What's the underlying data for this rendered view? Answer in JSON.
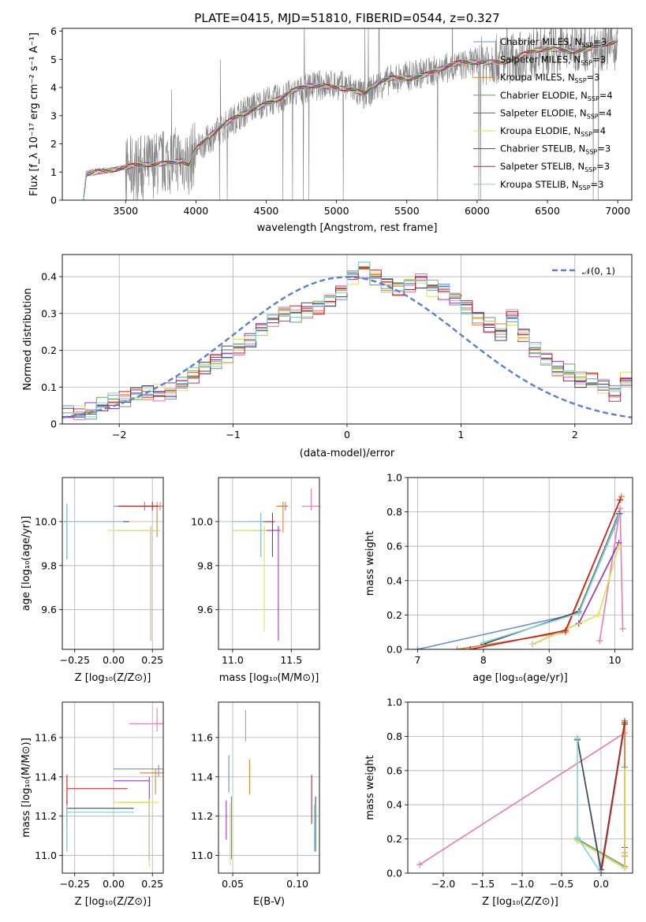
{
  "figure": {
    "title": "PLATE=0415, MJD=51810, FIBERID=0544, z=0.327"
  },
  "colors": {
    "Chabrier MILES": "#6b8fd4",
    "Salpeter MILES": "#e87cb0",
    "Kroupa MILES": "#d9822b",
    "Chabrier ELODIE": "#6a9e6a",
    "Salpeter ELODIE": "#9b37c0",
    "Kroupa ELODIE": "#e3e052",
    "Chabrier STELIB": "#3d4e4e",
    "Salpeter STELIB": "#c81e1e",
    "Kroupa STELIB": "#87cfd8",
    "data": "#808080",
    "normal": "#5b7fd0"
  },
  "chart_data": [
    {
      "id": "spectrum",
      "type": "line",
      "title": "PLATE=0415, MJD=51810, FIBERID=0544, z=0.327",
      "xlabel": "wavelength [Angstrom, rest frame]",
      "ylabel": "Flux [f_λ 10⁻¹⁷ erg cm⁻² s⁻¹ A⁻¹]",
      "xlim": [
        3050,
        7100
      ],
      "ylim": [
        0,
        6.1
      ],
      "xticks": [
        3500,
        4000,
        4500,
        5000,
        5500,
        6000,
        6500,
        7000
      ],
      "yticks": [
        0,
        1,
        2,
        3,
        4,
        5,
        6
      ],
      "legend_loc": "upper right",
      "legend": [
        "Chabrier MILES, N_SSP=3",
        "Salpeter MILES, N_SSP=3",
        "Kroupa MILES, N_SSP=3",
        "Chabrier ELODIE, N_SSP=4",
        "Salpeter ELODIE, N_SSP=4",
        "Kroupa ELODIE, N_SSP=4",
        "Chabrier STELIB, N_SSP=3",
        "Salpeter STELIB, N_SSP=3",
        "Kroupa STELIB, N_SSP=3"
      ],
      "continuum": {
        "x": [
          3200,
          3220,
          3300,
          3400,
          3500,
          3600,
          3700,
          3800,
          3900,
          3950,
          4000,
          4100,
          4200,
          4300,
          4400,
          4500,
          4600,
          4700,
          4800,
          4900,
          5000,
          5100,
          5200,
          5300,
          5400,
          5500,
          5600,
          5700,
          5800,
          5900,
          6000,
          6100,
          6200,
          6300,
          6400,
          6500,
          6600,
          6700,
          6800,
          6900,
          7000
        ],
        "y": [
          0,
          1.0,
          1.1,
          1.1,
          1.1,
          1.15,
          1.25,
          1.4,
          1.5,
          1.3,
          1.8,
          2.2,
          2.6,
          3.0,
          3.3,
          3.5,
          3.6,
          3.8,
          4.0,
          4.1,
          4.1,
          4.0,
          3.7,
          4.1,
          4.3,
          4.4,
          4.5,
          4.6,
          4.7,
          4.8,
          4.9,
          5.0,
          5.0,
          5.1,
          5.2,
          5.3,
          5.35,
          5.4,
          5.45,
          5.5,
          5.5
        ]
      }
    },
    {
      "id": "residuals",
      "type": "line",
      "xlabel": "(data-model)/error",
      "ylabel": "Normed distribution",
      "xlim": [
        -2.5,
        2.5
      ],
      "ylim": [
        0,
        0.46
      ],
      "xticks": [
        -2,
        -1,
        0,
        1,
        2
      ],
      "yticks": [
        0.0,
        0.1,
        0.2,
        0.3,
        0.4
      ],
      "legend": [
        "𝒩(0, 1)"
      ],
      "legend_loc": "upper right",
      "grid": true,
      "bin_edges_start": -2.6,
      "bin_width": 0.1,
      "histogram_base": [
        0.025,
        0.03,
        0.03,
        0.035,
        0.05,
        0.06,
        0.065,
        0.08,
        0.085,
        0.085,
        0.09,
        0.11,
        0.13,
        0.15,
        0.17,
        0.19,
        0.21,
        0.23,
        0.26,
        0.28,
        0.3,
        0.3,
        0.31,
        0.32,
        0.34,
        0.36,
        0.4,
        0.42,
        0.4,
        0.38,
        0.37,
        0.38,
        0.39,
        0.37,
        0.36,
        0.34,
        0.32,
        0.29,
        0.27,
        0.25,
        0.29,
        0.24,
        0.2,
        0.18,
        0.15,
        0.14,
        0.12,
        0.12,
        0.1,
        0.08,
        0.12,
        0.08,
        0.08,
        0.06,
        0.05,
        0.04
      ]
    },
    {
      "id": "age-vs-Z",
      "type": "scatter",
      "xlabel": "Z [log₁₀(Z/Z⊙)]",
      "ylabel": "age  [log₁₀(age/yr)]",
      "xlim": [
        -0.33,
        0.32
      ],
      "ylim": [
        9.42,
        10.2
      ],
      "xticks": [
        -0.25,
        0.0,
        0.25
      ],
      "yticks": [
        9.6,
        9.8,
        10.0
      ],
      "grid": true,
      "series": [
        {
          "name": "Chabrier MILES",
          "x": 0.2,
          "xerr": [
            0.2,
            0.1
          ],
          "y": 10.07,
          "yerr": [
            0.02,
            0.02
          ]
        },
        {
          "name": "Salpeter MILES",
          "x": 0.3,
          "xerr": [
            0.04,
            0.04
          ],
          "y": 10.07,
          "yerr": [
            0.02,
            0.02
          ]
        },
        {
          "name": "Kroupa MILES",
          "x": 0.28,
          "xerr": [
            0.1,
            0.05
          ],
          "y": 10.07,
          "yerr": [
            0.14,
            0.02
          ]
        },
        {
          "name": "Chabrier ELODIE",
          "x": -0.3,
          "xerr": [
            0.02,
            0.0
          ],
          "y": 10.0,
          "yerr": [
            0.17,
            0.08
          ]
        },
        {
          "name": "Salpeter ELODIE",
          "x": 0.24,
          "xerr": [
            0.22,
            0.06
          ],
          "y": 9.96,
          "yerr": [
            0.5,
            0.02
          ]
        },
        {
          "name": "Kroupa ELODIE",
          "x": 0.24,
          "xerr": [
            0.28,
            0.06
          ],
          "y": 9.96,
          "yerr": [
            0.5,
            0.02
          ]
        },
        {
          "name": "Chabrier STELIB",
          "x": -0.3,
          "xerr": [
            0.0,
            0.4
          ],
          "y": 10.0,
          "yerr": [
            0.16,
            0.08
          ]
        },
        {
          "name": "Salpeter STELIB",
          "x": 0.25,
          "xerr": [
            0.22,
            0.04
          ],
          "y": 10.07,
          "yerr": [
            0.02,
            0.02
          ]
        },
        {
          "name": "Kroupa STELIB",
          "x": -0.3,
          "xerr": [
            0.0,
            0.36
          ],
          "y": 10.0,
          "yerr": [
            0.16,
            0.08
          ]
        }
      ]
    },
    {
      "id": "age-vs-mass",
      "type": "scatter",
      "xlabel": "mass [log₁₀(M/M⊙)]",
      "ylabel": "",
      "xlim": [
        10.88,
        11.74
      ],
      "ylim": [
        9.42,
        10.2
      ],
      "xticks": [
        11.0,
        11.5
      ],
      "yticks": [
        9.6,
        9.8,
        10.0
      ],
      "grid": true,
      "series": [
        {
          "name": "Chabrier MILES",
          "x": 11.45,
          "xerr": [
            0.06,
            0.02
          ],
          "y": 10.07,
          "yerr": [
            0.02,
            0.02
          ]
        },
        {
          "name": "Salpeter MILES",
          "x": 11.67,
          "xerr": [
            0.08,
            0.08
          ],
          "y": 10.07,
          "yerr": [
            0.02,
            0.08
          ]
        },
        {
          "name": "Kroupa MILES",
          "x": 11.43,
          "xerr": [
            0.06,
            0.04
          ],
          "y": 10.07,
          "yerr": [
            0.12,
            0.02
          ]
        },
        {
          "name": "Chabrier ELODIE",
          "x": 11.27,
          "xerr": [
            0.27,
            0.02
          ],
          "y": 9.96,
          "yerr": [
            0.02,
            0.02
          ]
        },
        {
          "name": "Salpeter ELODIE",
          "x": 11.39,
          "xerr": [
            0.21,
            0.02
          ],
          "y": 9.96,
          "yerr": [
            0.5,
            0.02
          ]
        },
        {
          "name": "Kroupa ELODIE",
          "x": 11.27,
          "xerr": [
            0.27,
            0.02
          ],
          "y": 9.96,
          "yerr": [
            0.46,
            0.02
          ]
        },
        {
          "name": "Chabrier STELIB",
          "x": 11.24,
          "xerr": [
            0.24,
            0.02
          ],
          "y": 10.0,
          "yerr": [
            0.16,
            0.04
          ]
        },
        {
          "name": "Salpeter STELIB",
          "x": 11.34,
          "xerr": [
            0.2,
            0.02
          ],
          "y": 10.0,
          "yerr": [
            0.16,
            0.04
          ]
        },
        {
          "name": "Kroupa STELIB",
          "x": 11.24,
          "xerr": [
            0.24,
            0.02
          ],
          "y": 10.0,
          "yerr": [
            0.16,
            0.04
          ]
        }
      ]
    },
    {
      "id": "weight-vs-age",
      "type": "line",
      "xlabel": "age  [log₁₀(age/yr)]",
      "ylabel": "mass weight",
      "xlim": [
        6.85,
        10.27
      ],
      "ylim": [
        0,
        1.0
      ],
      "xticks": [
        7,
        8,
        9,
        10
      ],
      "yticks": [
        0.0,
        0.2,
        0.4,
        0.6,
        0.8,
        1.0
      ],
      "grid": true,
      "series": [
        {
          "name": "Chabrier MILES",
          "x": [
            7.0,
            9.45,
            10.08
          ],
          "y": [
            0.0,
            0.21,
            0.79
          ]
        },
        {
          "name": "Salpeter MILES",
          "x": [
            9.77,
            10.08,
            10.12
          ],
          "y": [
            0.05,
            0.82,
            0.12
          ]
        },
        {
          "name": "Kroupa MILES",
          "x": [
            7.6,
            9.25,
            10.1
          ],
          "y": [
            0.0,
            0.1,
            0.89
          ]
        },
        {
          "name": "Chabrier ELODIE",
          "x": [
            8.75,
            9.45,
            10.06
          ],
          "y": [
            0.03,
            0.15,
            0.62
          ]
        },
        {
          "name": "Salpeter ELODIE",
          "x": [
            8.75,
            9.45,
            10.06
          ],
          "y": [
            0.03,
            0.15,
            0.62
          ]
        },
        {
          "name": "Kroupa ELODIE",
          "x": [
            8.75,
            9.75,
            10.06
          ],
          "y": [
            0.03,
            0.2,
            0.6
          ]
        },
        {
          "name": "Chabrier STELIB",
          "x": [
            8.0,
            9.45,
            10.06
          ],
          "y": [
            0.03,
            0.22,
            0.79
          ]
        },
        {
          "name": "Salpeter STELIB",
          "x": [
            7.8,
            9.25,
            10.08
          ],
          "y": [
            0.0,
            0.11,
            0.87
          ]
        },
        {
          "name": "Kroupa STELIB",
          "x": [
            8.0,
            9.45,
            10.06
          ],
          "y": [
            0.04,
            0.21,
            0.78
          ]
        }
      ]
    },
    {
      "id": "mass-vs-Z",
      "type": "scatter",
      "xlabel": "Z [log₁₀(Z/Z⊙)]",
      "ylabel": "mass [log₁₀(M/M⊙)]",
      "xlim": [
        -0.33,
        0.32
      ],
      "ylim": [
        10.91,
        11.78
      ],
      "xticks": [
        -0.25,
        0.0,
        0.25
      ],
      "yticks": [
        11.0,
        11.2,
        11.4,
        11.6
      ],
      "grid": true,
      "series": [
        {
          "name": "Chabrier MILES",
          "x": 0.29,
          "xerr": [
            0.29,
            0.03
          ],
          "y": 11.44,
          "yerr": [
            0.04,
            0.02
          ]
        },
        {
          "name": "Salpeter MILES",
          "x": 0.28,
          "xerr": [
            0.18,
            0.04
          ],
          "y": 11.67,
          "yerr": [
            0.04,
            0.08
          ]
        },
        {
          "name": "Kroupa MILES",
          "x": 0.27,
          "xerr": [
            0.1,
            0.05
          ],
          "y": 11.42,
          "yerr": [
            0.11,
            0.02
          ]
        },
        {
          "name": "Chabrier ELODIE",
          "x": 0.23,
          "xerr": [
            0.19,
            0.0
          ],
          "y": 11.27,
          "yerr": [
            0.3,
            0.02
          ]
        },
        {
          "name": "Salpeter ELODIE",
          "x": 0.23,
          "xerr": [
            0.23,
            0.0
          ],
          "y": 11.38,
          "yerr": [
            0.4,
            0.02
          ]
        },
        {
          "name": "Kroupa ELODIE",
          "x": 0.23,
          "xerr": [
            0.23,
            0.06
          ],
          "y": 11.27,
          "yerr": [
            0.33,
            0.02
          ]
        },
        {
          "name": "Chabrier STELIB",
          "x": -0.3,
          "xerr": [
            0.0,
            0.43
          ],
          "y": 11.24,
          "yerr": [
            0.22,
            0.04
          ]
        },
        {
          "name": "Salpeter STELIB",
          "x": -0.3,
          "xerr": [
            0.0,
            0.39
          ],
          "y": 11.34,
          "yerr": [
            0.2,
            0.07
          ]
        },
        {
          "name": "Kroupa STELIB",
          "x": -0.3,
          "xerr": [
            0.0,
            0.43
          ],
          "y": 11.22,
          "yerr": [
            0.2,
            0.04
          ]
        }
      ]
    },
    {
      "id": "mass-vs-ebv",
      "type": "scatter",
      "xlabel": "E(B-V)",
      "ylabel": "",
      "xlim": [
        0.039,
        0.117
      ],
      "ylim": [
        10.91,
        11.78
      ],
      "xticks": [
        0.05,
        0.1
      ],
      "yticks": [
        11.0,
        11.2,
        11.4,
        11.6
      ],
      "grid": true,
      "series": [
        {
          "name": "Chabrier MILES",
          "x": 0.047,
          "y": 11.42,
          "yerr": [
            0.1,
            0.09
          ]
        },
        {
          "name": "Salpeter MILES",
          "x": 0.06,
          "y": 11.67,
          "yerr": [
            0.09,
            0.07
          ]
        },
        {
          "name": "Kroupa MILES",
          "x": 0.063,
          "y": 11.4,
          "yerr": [
            0.09,
            0.09
          ]
        },
        {
          "name": "Chabrier ELODIE",
          "x": 0.049,
          "y": 11.18,
          "yerr": [
            0.2,
            0.12
          ]
        },
        {
          "name": "Salpeter ELODIE",
          "x": 0.045,
          "y": 11.22,
          "yerr": [
            0.14,
            0.06
          ]
        },
        {
          "name": "Kroupa ELODIE",
          "x": 0.048,
          "y": 11.15,
          "yerr": [
            0.2,
            0.12
          ]
        },
        {
          "name": "Chabrier STELIB",
          "x": 0.114,
          "y": 11.17,
          "yerr": [
            0.15,
            0.13
          ]
        },
        {
          "name": "Salpeter STELIB",
          "x": 0.111,
          "y": 11.28,
          "yerr": [
            0.12,
            0.13
          ]
        },
        {
          "name": "Kroupa STELIB",
          "x": 0.113,
          "y": 11.14,
          "yerr": [
            0.12,
            0.12
          ]
        }
      ]
    },
    {
      "id": "weight-vs-Z",
      "type": "line",
      "xlabel": "Z [log₁₀(Z/Z⊙)]",
      "ylabel": "mass weight",
      "xlim": [
        -2.45,
        0.4
      ],
      "ylim": [
        0,
        1.0
      ],
      "xticks": [
        -2.0,
        -1.5,
        -1.0,
        -0.5,
        0.0
      ],
      "yticks": [
        0.0,
        0.2,
        0.4,
        0.6,
        0.8,
        1.0
      ],
      "grid": true,
      "series": [
        {
          "name": "Chabrier MILES",
          "x": [
            -0.3,
            0.0,
            0.3
          ],
          "y": [
            0.79,
            0.0,
            0.89
          ]
        },
        {
          "name": "Salpeter MILES",
          "x": [
            -2.3,
            0.3,
            0.3
          ],
          "y": [
            0.05,
            0.82,
            0.12
          ]
        },
        {
          "name": "Kroupa MILES",
          "x": [
            0.0,
            0.3,
            0.3
          ],
          "y": [
            0.0,
            0.89,
            0.1
          ]
        },
        {
          "name": "Chabrier ELODIE",
          "x": [
            -0.3,
            0.3,
            0.3
          ],
          "y": [
            0.2,
            0.04,
            0.62
          ]
        },
        {
          "name": "Salpeter ELODIE",
          "x": [
            -0.3,
            0.3,
            0.3
          ],
          "y": [
            0.19,
            0.03,
            0.15
          ]
        },
        {
          "name": "Kroupa ELODIE",
          "x": [
            -0.3,
            0.3,
            0.3
          ],
          "y": [
            0.19,
            0.03,
            0.6
          ]
        },
        {
          "name": "Chabrier STELIB",
          "x": [
            -0.3,
            0.0,
            0.3
          ],
          "y": [
            0.78,
            0.02,
            0.88
          ]
        },
        {
          "name": "Salpeter STELIB",
          "x": [
            0.0,
            0.3
          ],
          "y": [
            0.0,
            0.87
          ]
        },
        {
          "name": "Kroupa STELIB",
          "x": [
            -0.3,
            -0.3,
            0.0
          ],
          "y": [
            0.79,
            0.21,
            0.0
          ]
        }
      ]
    }
  ]
}
